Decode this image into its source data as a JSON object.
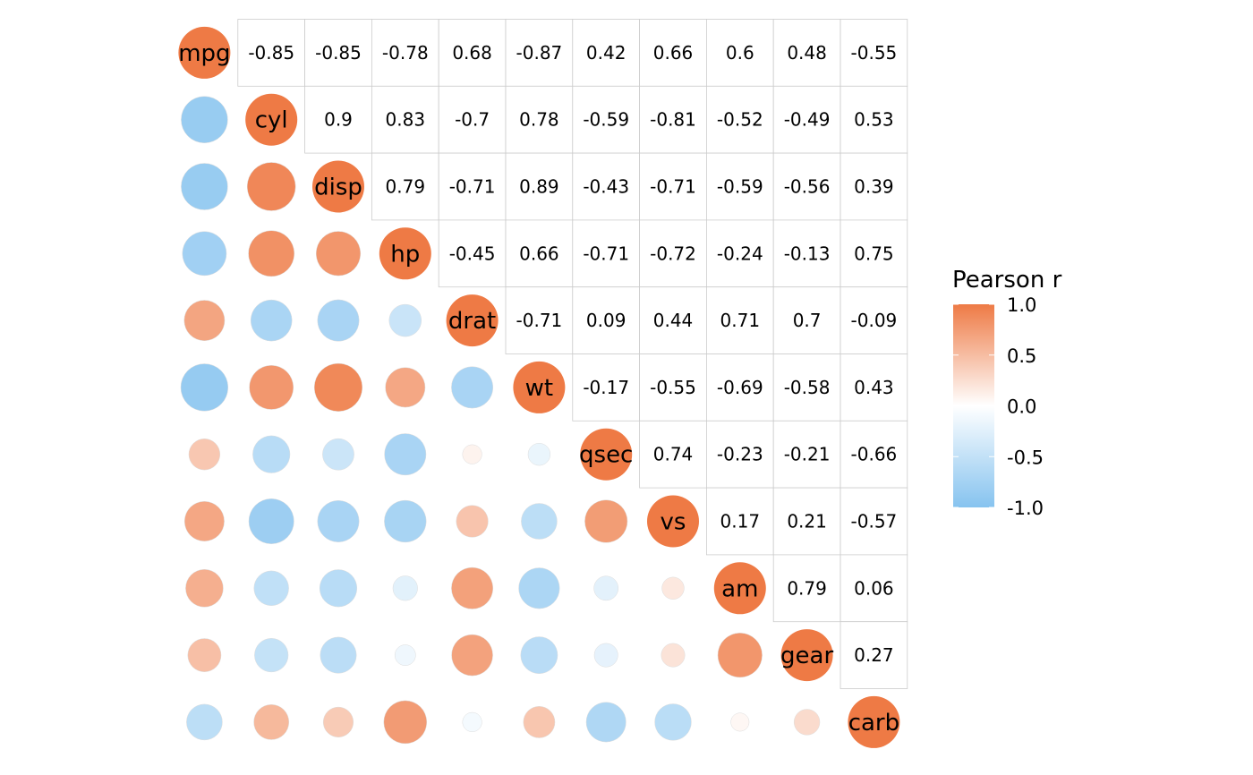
{
  "chart_data": {
    "type": "heatmap",
    "subtype": "correlation-matrix",
    "variables": [
      "mpg",
      "cyl",
      "disp",
      "hp",
      "drat",
      "wt",
      "qsec",
      "vs",
      "am",
      "gear",
      "carb"
    ],
    "upper_triangle": [
      [
        "-0.85",
        "-0.85",
        "-0.78",
        "0.68",
        "-0.87",
        "0.42",
        "0.66",
        "0.6",
        "0.48",
        "-0.55"
      ],
      [
        "0.9",
        "0.83",
        "-0.7",
        "0.78",
        "-0.59",
        "-0.81",
        "-0.52",
        "-0.49",
        "0.53"
      ],
      [
        "0.79",
        "-0.71",
        "0.89",
        "-0.43",
        "-0.71",
        "-0.59",
        "-0.56",
        "0.39"
      ],
      [
        "-0.45",
        "0.66",
        "-0.71",
        "-0.72",
        "-0.24",
        "-0.13",
        "0.75"
      ],
      [
        "-0.71",
        "0.09",
        "0.44",
        "0.71",
        "0.7",
        "-0.09"
      ],
      [
        "-0.17",
        "-0.55",
        "-0.69",
        "-0.58",
        "0.43"
      ],
      [
        "0.74",
        "-0.23",
        "-0.21",
        "-0.66"
      ],
      [
        "0.17",
        "0.21",
        "-0.57"
      ],
      [
        "0.79",
        "0.06"
      ],
      [
        "0.27"
      ],
      []
    ],
    "legend": {
      "title": "Pearson r",
      "ticks": [
        "1.0",
        "0.5",
        "0.0",
        "-0.5",
        "-1.0"
      ],
      "range": [
        -1,
        1
      ],
      "placement": "right"
    },
    "colors": {
      "high": "#EE7A45",
      "mid": "#FFFFFF",
      "low": "#86C3EF",
      "grid": "#CCCCCC"
    }
  }
}
